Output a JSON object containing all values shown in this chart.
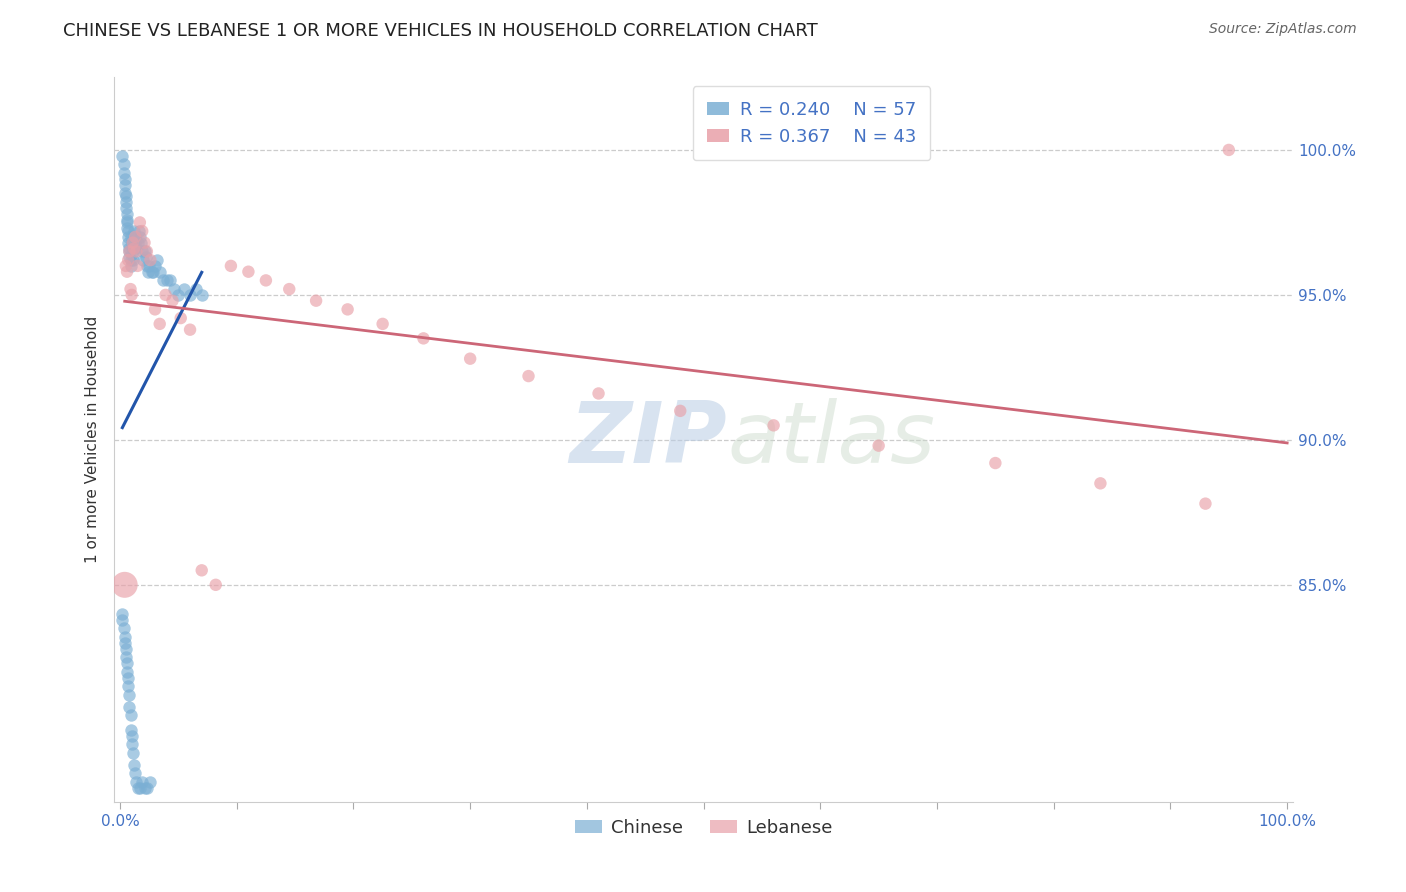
{
  "title": "CHINESE VS LEBANESE 1 OR MORE VEHICLES IN HOUSEHOLD CORRELATION CHART",
  "source": "Source: ZipAtlas.com",
  "ylabel": "1 or more Vehicles in Household",
  "xlim": [
    -0.005,
    1.005
  ],
  "ylim": [
    0.775,
    1.025
  ],
  "yticks": [
    0.85,
    0.9,
    0.95,
    1.0
  ],
  "ytick_labels": [
    "85.0%",
    "90.0%",
    "95.0%",
    "100.0%"
  ],
  "xticks": [
    0.0,
    0.1,
    0.2,
    0.3,
    0.4,
    0.5,
    0.6,
    0.7,
    0.8,
    0.9,
    1.0
  ],
  "xtick_labels": [
    "0.0%",
    "",
    "",
    "",
    "",
    "",
    "",
    "",
    "",
    "",
    "100.0%"
  ],
  "chinese_color": "#7bafd4",
  "lebanese_color": "#e8a0a8",
  "trend_chinese_color": "#2255aa",
  "trend_lebanese_color": "#cc6677",
  "legend_R_chinese": "R = 0.240",
  "legend_N_chinese": "N = 57",
  "legend_R_lebanese": "R = 0.367",
  "legend_N_lebanese": "N = 43",
  "background_color": "#ffffff",
  "grid_color": "#cccccc",
  "watermark_zip": "ZIP",
  "watermark_atlas": "atlas",
  "title_fontsize": 13,
  "axis_label_fontsize": 11,
  "tick_fontsize": 11,
  "legend_fontsize": 13,
  "source_fontsize": 10,
  "chinese_x": [
    0.002,
    0.003,
    0.003,
    0.004,
    0.004,
    0.004,
    0.005,
    0.005,
    0.005,
    0.006,
    0.006,
    0.006,
    0.006,
    0.007,
    0.007,
    0.007,
    0.008,
    0.008,
    0.008,
    0.009,
    0.009,
    0.009,
    0.01,
    0.01,
    0.01,
    0.011,
    0.011,
    0.012,
    0.012,
    0.013,
    0.013,
    0.014,
    0.015,
    0.016,
    0.017,
    0.018,
    0.019,
    0.02,
    0.021,
    0.022,
    0.023,
    0.024,
    0.025,
    0.027,
    0.028,
    0.03,
    0.032,
    0.034,
    0.037,
    0.04,
    0.043,
    0.046,
    0.05,
    0.055,
    0.06,
    0.065,
    0.07
  ],
  "chinese_y": [
    0.998,
    0.995,
    0.992,
    0.99,
    0.988,
    0.985,
    0.984,
    0.982,
    0.98,
    0.978,
    0.976,
    0.975,
    0.973,
    0.972,
    0.97,
    0.968,
    0.966,
    0.965,
    0.963,
    0.962,
    0.96,
    0.97,
    0.968,
    0.966,
    0.964,
    0.962,
    0.968,
    0.966,
    0.972,
    0.968,
    0.97,
    0.966,
    0.968,
    0.972,
    0.97,
    0.968,
    0.965,
    0.962,
    0.965,
    0.963,
    0.96,
    0.958,
    0.96,
    0.958,
    0.958,
    0.96,
    0.962,
    0.958,
    0.955,
    0.955,
    0.955,
    0.952,
    0.95,
    0.952,
    0.95,
    0.952,
    0.95
  ],
  "chinese_y_low": [
    0.84,
    0.838,
    0.835,
    0.832,
    0.83,
    0.828,
    0.825,
    0.823,
    0.82,
    0.818,
    0.815,
    0.812,
    0.808,
    0.805,
    0.8,
    0.798,
    0.795,
    0.792,
    0.788,
    0.785,
    0.782,
    0.78,
    0.78,
    0.782,
    0.78,
    0.78,
    0.782
  ],
  "chinese_x_low": [
    0.002,
    0.002,
    0.003,
    0.004,
    0.004,
    0.005,
    0.005,
    0.006,
    0.006,
    0.007,
    0.007,
    0.008,
    0.008,
    0.009,
    0.009,
    0.01,
    0.01,
    0.011,
    0.012,
    0.013,
    0.014,
    0.015,
    0.017,
    0.019,
    0.021,
    0.023,
    0.026
  ],
  "lebanese_x": [
    0.005,
    0.006,
    0.007,
    0.008,
    0.009,
    0.01,
    0.011,
    0.012,
    0.013,
    0.014,
    0.015,
    0.017,
    0.019,
    0.021,
    0.023,
    0.026,
    0.03,
    0.034,
    0.039,
    0.045,
    0.052,
    0.06,
    0.07,
    0.082,
    0.095,
    0.11,
    0.125,
    0.145,
    0.168,
    0.195,
    0.225,
    0.26,
    0.3,
    0.35,
    0.41,
    0.48,
    0.56,
    0.65,
    0.75,
    0.84,
    0.93,
    0.004,
    0.95
  ],
  "lebanese_y": [
    0.96,
    0.958,
    0.962,
    0.965,
    0.952,
    0.95,
    0.968,
    0.966,
    0.97,
    0.965,
    0.96,
    0.975,
    0.972,
    0.968,
    0.965,
    0.962,
    0.945,
    0.94,
    0.95,
    0.948,
    0.942,
    0.938,
    0.855,
    0.85,
    0.96,
    0.958,
    0.955,
    0.952,
    0.948,
    0.945,
    0.94,
    0.935,
    0.928,
    0.922,
    0.916,
    0.91,
    0.905,
    0.898,
    0.892,
    0.885,
    0.878,
    0.85,
    1.0
  ],
  "lebanese_large_idx": 41,
  "lebanese_large_size": 350,
  "dot_size": 80
}
